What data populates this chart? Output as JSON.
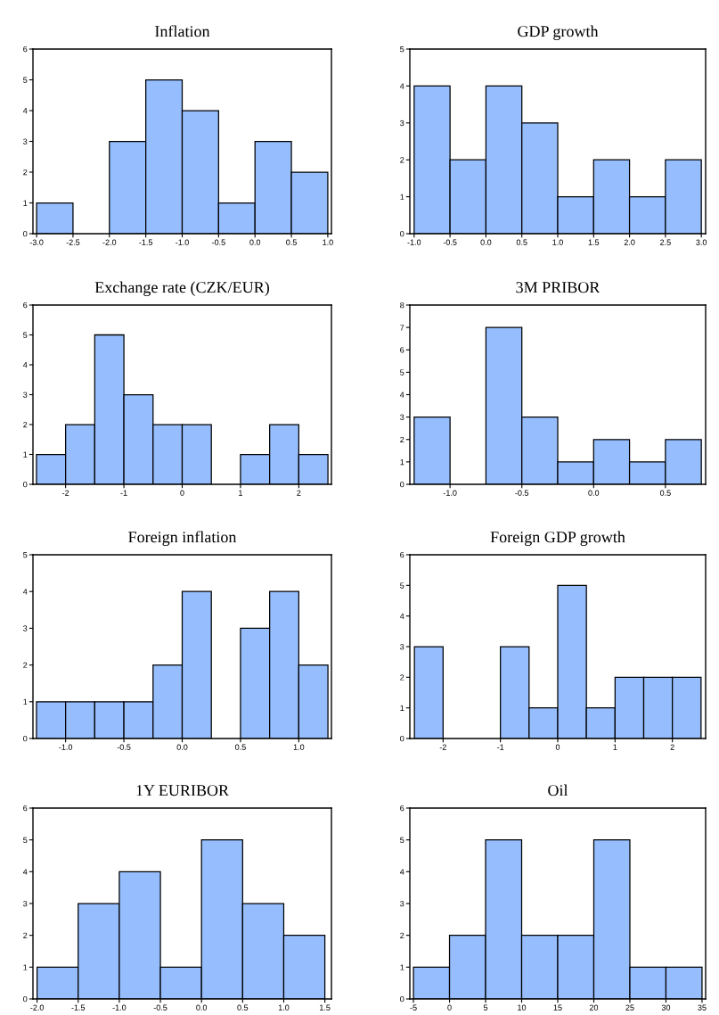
{
  "chart_data": [
    {
      "type": "histogram",
      "title": "Inflation",
      "color": "#96beff",
      "bins": [
        -3.0,
        -2.5,
        -2.0,
        -1.5,
        -1.0,
        -0.5,
        0.0,
        0.5,
        1.0
      ],
      "values": [
        1,
        0,
        3,
        5,
        4,
        1,
        3,
        2
      ],
      "xlim": [
        -3.05,
        1.05
      ],
      "xticks": [
        {
          "value": -3.0,
          "label": "-3.0"
        },
        {
          "value": -2.5,
          "label": "-2.5"
        },
        {
          "value": -2.0,
          "label": "-2.0"
        },
        {
          "value": -1.5,
          "label": "-1.5"
        },
        {
          "value": -1.0,
          "label": "-1.0"
        },
        {
          "value": -0.5,
          "label": "-0.5"
        },
        {
          "value": 0.0,
          "label": "0.0"
        },
        {
          "value": 0.5,
          "label": "0.5"
        },
        {
          "value": 1.0,
          "label": "1.0"
        }
      ],
      "ylim": [
        0,
        6
      ],
      "yticks": [
        0,
        1,
        2,
        3,
        4,
        5,
        6
      ]
    },
    {
      "type": "histogram",
      "title": "GDP growth",
      "color": "#96beff",
      "bins": [
        -1.0,
        -0.5,
        0.0,
        0.5,
        1.0,
        1.5,
        2.0,
        2.5,
        3.0
      ],
      "values": [
        4,
        2,
        4,
        3,
        1,
        2,
        1,
        2
      ],
      "xlim": [
        -1.06,
        3.06
      ],
      "xticks": [
        {
          "value": -1.0,
          "label": "-1.0"
        },
        {
          "value": -0.5,
          "label": "-0.5"
        },
        {
          "value": 0.0,
          "label": "0.0"
        },
        {
          "value": 0.5,
          "label": "0.5"
        },
        {
          "value": 1.0,
          "label": "1.0"
        },
        {
          "value": 1.5,
          "label": "1.5"
        },
        {
          "value": 2.0,
          "label": "2.0"
        },
        {
          "value": 2.5,
          "label": "2.5"
        },
        {
          "value": 3.0,
          "label": "3.0"
        }
      ],
      "ylim": [
        0,
        5
      ],
      "yticks": [
        0,
        1,
        2,
        3,
        4,
        5
      ]
    },
    {
      "type": "histogram",
      "title": "Exchange rate (CZK/EUR)",
      "color": "#96beff",
      "bins": [
        -2.5,
        -2.0,
        -1.5,
        -1.0,
        -0.5,
        0.0,
        0.5,
        1.0,
        1.5,
        2.0,
        2.5
      ],
      "values": [
        1,
        2,
        5,
        3,
        2,
        2,
        0,
        1,
        2,
        1
      ],
      "xlim": [
        -2.56,
        2.56
      ],
      "xticks": [
        -2,
        -1,
        0,
        1,
        2
      ],
      "ylim": [
        0,
        6
      ],
      "yticks": [
        0,
        1,
        2,
        3,
        4,
        5,
        6
      ]
    },
    {
      "type": "histogram",
      "title": "3M PRIBOR",
      "color": "#96beff",
      "bins": [
        -1.25,
        -1.0,
        -0.75,
        -0.5,
        -0.25,
        0.0,
        0.25,
        0.5,
        0.75
      ],
      "values": [
        3,
        0,
        7,
        3,
        1,
        2,
        1,
        2
      ],
      "xlim": [
        -1.28,
        0.78
      ],
      "xticks": [
        {
          "value": -1.0,
          "label": "-1.0"
        },
        {
          "value": -0.5,
          "label": "-0.5"
        },
        {
          "value": 0.0,
          "label": "0.0"
        },
        {
          "value": 0.5,
          "label": "0.5"
        }
      ],
      "ylim": [
        0,
        8
      ],
      "yticks": [
        0,
        1,
        2,
        3,
        4,
        5,
        6,
        7,
        8
      ]
    },
    {
      "type": "histogram",
      "title": "Foreign inflation",
      "color": "#96beff",
      "bins": [
        -1.25,
        -1.0,
        -0.75,
        -0.5,
        -0.25,
        0.0,
        0.25,
        0.5,
        0.75,
        1.0,
        1.25
      ],
      "values": [
        1,
        1,
        1,
        1,
        2,
        4,
        0,
        3,
        4,
        2
      ],
      "xlim": [
        -1.28,
        1.28
      ],
      "xticks": [
        {
          "value": -1.0,
          "label": "-1.0"
        },
        {
          "value": -0.5,
          "label": "-0.5"
        },
        {
          "value": 0.0,
          "label": "0.0"
        },
        {
          "value": 0.5,
          "label": "0.5"
        },
        {
          "value": 1.0,
          "label": "1.0"
        }
      ],
      "ylim": [
        0,
        5
      ],
      "yticks": [
        0,
        1,
        2,
        3,
        4,
        5
      ]
    },
    {
      "type": "histogram",
      "title": "Foreign GDP growth",
      "color": "#96beff",
      "bins": [
        -2.5,
        -2.0,
        -1.5,
        -1.0,
        -0.5,
        0.0,
        0.5,
        1.0,
        1.5,
        2.0,
        2.5
      ],
      "values": [
        3,
        0,
        0,
        3,
        1,
        5,
        1,
        2,
        2,
        2
      ],
      "xlim": [
        -2.58,
        2.58
      ],
      "xticks": [
        -2,
        -1,
        0,
        1,
        2
      ],
      "ylim": [
        0,
        6
      ],
      "yticks": [
        0,
        1,
        2,
        3,
        4,
        5,
        6
      ]
    },
    {
      "type": "histogram",
      "title": "1Y EURIBOR",
      "color": "#96beff",
      "bins": [
        -2.0,
        -1.5,
        -1.0,
        -0.5,
        0.0,
        0.5,
        1.0,
        1.5
      ],
      "values": [
        1,
        3,
        4,
        1,
        5,
        3,
        2
      ],
      "xlim": [
        -2.05,
        1.58
      ],
      "xticks": [
        {
          "value": -2.0,
          "label": "-2.0"
        },
        {
          "value": -1.5,
          "label": "-1.5"
        },
        {
          "value": -1.0,
          "label": "-1.0"
        },
        {
          "value": -0.5,
          "label": "-0.5"
        },
        {
          "value": 0.0,
          "label": "0.0"
        },
        {
          "value": 0.5,
          "label": "0.5"
        },
        {
          "value": 1.0,
          "label": "1.0"
        },
        {
          "value": 1.5,
          "label": "1.5"
        }
      ],
      "ylim": [
        0,
        6
      ],
      "yticks": [
        0,
        1,
        2,
        3,
        4,
        5,
        6
      ]
    },
    {
      "type": "histogram",
      "title": "Oil",
      "color": "#96beff",
      "bins": [
        -5,
        0,
        5,
        10,
        15,
        20,
        25,
        30,
        35
      ],
      "values": [
        1,
        2,
        5,
        2,
        2,
        5,
        1,
        1
      ],
      "xlim": [
        -5.5,
        35.5
      ],
      "xticks": [
        -5,
        0,
        5,
        10,
        15,
        20,
        25,
        30,
        35
      ],
      "ylim": [
        0,
        6
      ],
      "yticks": [
        0,
        1,
        2,
        3,
        4,
        5,
        6
      ]
    }
  ]
}
